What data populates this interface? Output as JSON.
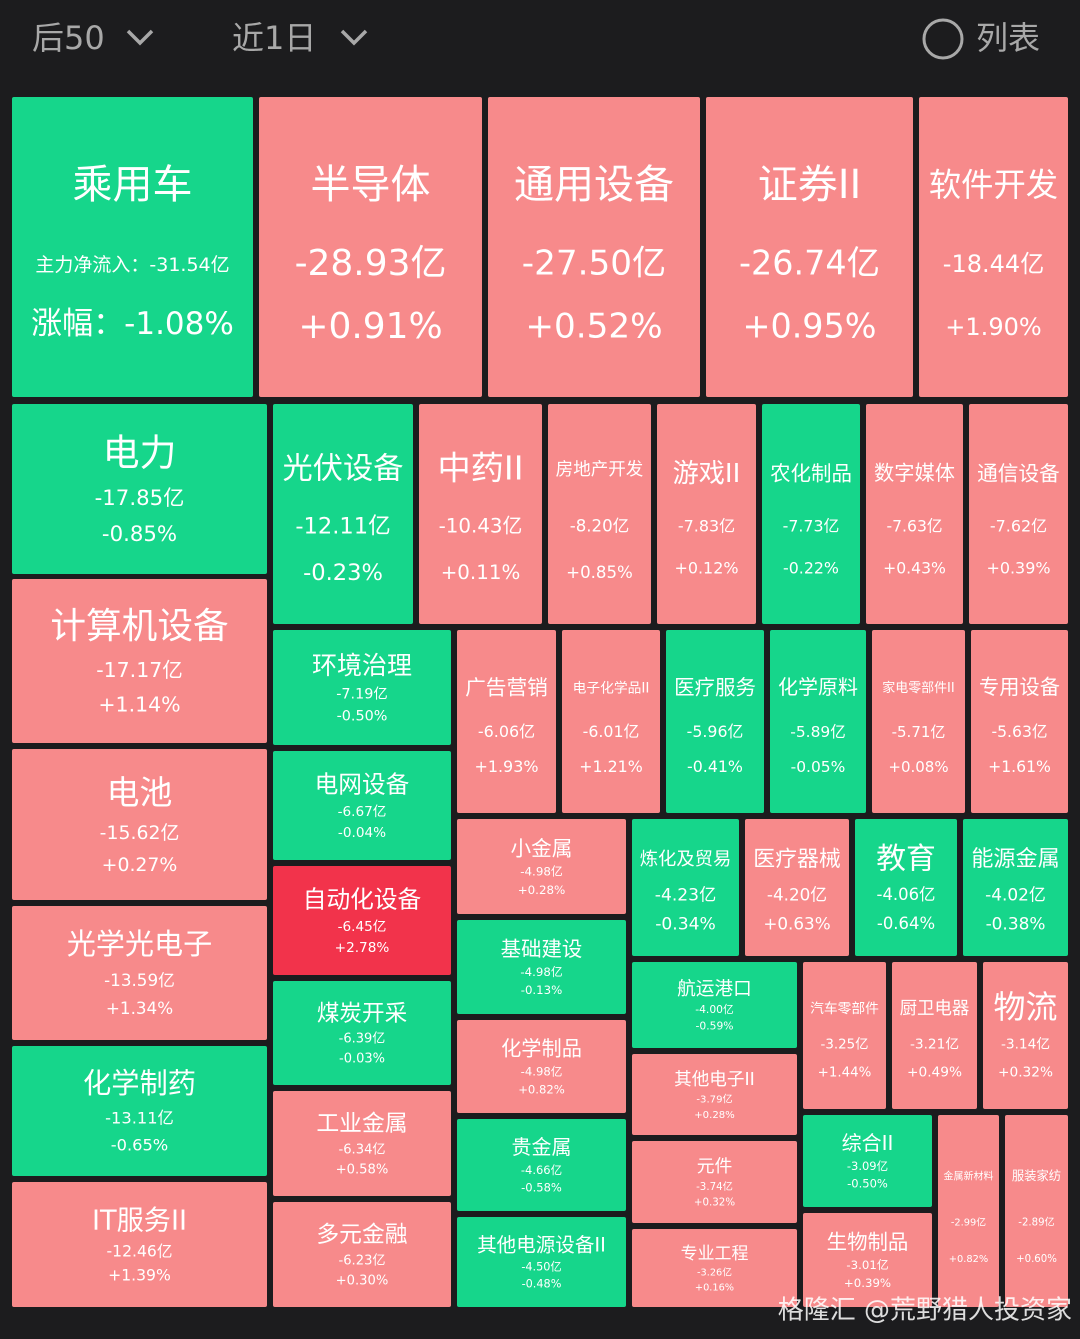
{
  "header": {
    "rank_filter": "后50",
    "period_filter": "近1日",
    "list_button": "列表"
  },
  "first_tile_labels": {
    "flow_label": "主力净流入：",
    "change_label": "涨幅："
  },
  "watermark": "格隆汇 @荒野猎人投资家",
  "tiles": [
    {
      "name": "乘用车",
      "flow": "-31.54亿",
      "change": "-1.08%",
      "color": "#16d68b"
    },
    {
      "name": "半导体",
      "flow": "-28.93亿",
      "change": "+0.91%",
      "color": "#f78a8b"
    },
    {
      "name": "通用设备",
      "flow": "-27.50亿",
      "change": "+0.52%",
      "color": "#f78a8b"
    },
    {
      "name": "证券II",
      "flow": "-26.74亿",
      "change": "+0.95%",
      "color": "#f78a8b"
    },
    {
      "name": "软件开发",
      "flow": "-18.44亿",
      "change": "+1.90%",
      "color": "#f78a8b"
    },
    {
      "name": "电力",
      "flow": "-17.85亿",
      "change": "-0.85%",
      "color": "#16d68b"
    },
    {
      "name": "计算机设备",
      "flow": "-17.17亿",
      "change": "+1.14%",
      "color": "#f78a8b"
    },
    {
      "name": "电池",
      "flow": "-15.62亿",
      "change": "+0.27%",
      "color": "#f78a8b"
    },
    {
      "name": "光学光电子",
      "flow": "-13.59亿",
      "change": "+1.34%",
      "color": "#f78a8b"
    },
    {
      "name": "化学制药",
      "flow": "-13.11亿",
      "change": "-0.65%",
      "color": "#16d68b"
    },
    {
      "name": "IT服务II",
      "flow": "-12.46亿",
      "change": "+1.39%",
      "color": "#f78a8b"
    },
    {
      "name": "光伏设备",
      "flow": "-12.11亿",
      "change": "-0.23%",
      "color": "#16d68b"
    },
    {
      "name": "中药II",
      "flow": "-10.43亿",
      "change": "+0.11%",
      "color": "#f78a8b"
    },
    {
      "name": "房地产开发",
      "flow": "-8.20亿",
      "change": "+0.85%",
      "color": "#f78a8b"
    },
    {
      "name": "游戏II",
      "flow": "-7.83亿",
      "change": "+0.12%",
      "color": "#f78a8b"
    },
    {
      "name": "农化制品",
      "flow": "-7.73亿",
      "change": "-0.22%",
      "color": "#16d68b"
    },
    {
      "name": "数字媒体",
      "flow": "-7.63亿",
      "change": "+0.43%",
      "color": "#f78a8b"
    },
    {
      "name": "通信设备",
      "flow": "-7.62亿",
      "change": "+0.39%",
      "color": "#f78a8b"
    },
    {
      "name": "环境治理",
      "flow": "-7.19亿",
      "change": "-0.50%",
      "color": "#16d68b"
    },
    {
      "name": "电网设备",
      "flow": "-6.67亿",
      "change": "-0.04%",
      "color": "#16d68b"
    },
    {
      "name": "自动化设备",
      "flow": "-6.45亿",
      "change": "+2.78%",
      "color": "#f2334b"
    },
    {
      "name": "煤炭开采",
      "flow": "-6.39亿",
      "change": "-0.03%",
      "color": "#16d68b"
    },
    {
      "name": "工业金属",
      "flow": "-6.34亿",
      "change": "+0.58%",
      "color": "#f78a8b"
    },
    {
      "name": "多元金融",
      "flow": "-6.23亿",
      "change": "+0.30%",
      "color": "#f78a8b"
    },
    {
      "name": "广告营销",
      "flow": "-6.06亿",
      "change": "+1.93%",
      "color": "#f78a8b"
    },
    {
      "name": "电子化学品II",
      "flow": "-6.01亿",
      "change": "+1.21%",
      "color": "#f78a8b"
    },
    {
      "name": "医疗服务",
      "flow": "-5.96亿",
      "change": "-0.41%",
      "color": "#16d68b"
    },
    {
      "name": "化学原料",
      "flow": "-5.89亿",
      "change": "-0.05%",
      "color": "#16d68b"
    },
    {
      "name": "家电零部件II",
      "flow": "-5.71亿",
      "change": "+0.08%",
      "color": "#f78a8b"
    },
    {
      "name": "专用设备",
      "flow": "-5.63亿",
      "change": "+1.61%",
      "color": "#f78a8b"
    },
    {
      "name": "小金属",
      "flow": "-4.98亿",
      "change": "+0.28%",
      "color": "#f78a8b"
    },
    {
      "name": "基础建设",
      "flow": "-4.98亿",
      "change": "-0.13%",
      "color": "#16d68b"
    },
    {
      "name": "化学制品",
      "flow": "-4.98亿",
      "change": "+0.82%",
      "color": "#f78a8b"
    },
    {
      "name": "贵金属",
      "flow": "-4.66亿",
      "change": "-0.58%",
      "color": "#16d68b"
    },
    {
      "name": "其他电源设备II",
      "flow": "-4.50亿",
      "change": "-0.48%",
      "color": "#16d68b"
    },
    {
      "name": "炼化及贸易",
      "flow": "-4.23亿",
      "change": "-0.34%",
      "color": "#16d68b"
    },
    {
      "name": "医疗器械",
      "flow": "-4.20亿",
      "change": "+0.63%",
      "color": "#f78a8b"
    },
    {
      "name": "教育",
      "flow": "-4.06亿",
      "change": "-0.64%",
      "color": "#16d68b"
    },
    {
      "name": "能源金属",
      "flow": "-4.02亿",
      "change": "-0.38%",
      "color": "#16d68b"
    },
    {
      "name": "航运港口",
      "flow": "-4.00亿",
      "change": "-0.59%",
      "color": "#16d68b"
    },
    {
      "name": "其他电子II",
      "flow": "-3.79亿",
      "change": "+0.28%",
      "color": "#f78a8b"
    },
    {
      "name": "元件",
      "flow": "-3.74亿",
      "change": "+0.32%",
      "color": "#f78a8b"
    },
    {
      "name": "专业工程",
      "flow": "-3.26亿",
      "change": "+0.16%",
      "color": "#f78a8b"
    },
    {
      "name": "汽车零部件",
      "flow": "-3.25亿",
      "change": "+1.44%",
      "color": "#f78a8b"
    },
    {
      "name": "厨卫电器",
      "flow": "-3.21亿",
      "change": "+0.49%",
      "color": "#f78a8b"
    },
    {
      "name": "物流",
      "flow": "-3.14亿",
      "change": "+0.32%",
      "color": "#f78a8b"
    },
    {
      "name": "综合II",
      "flow": "-3.09亿",
      "change": "-0.50%",
      "color": "#16d68b"
    },
    {
      "name": "生物制品",
      "flow": "-3.01亿",
      "change": "+0.39%",
      "color": "#f78a8b"
    },
    {
      "name": "金属新材料",
      "flow": "-2.99亿",
      "change": "+0.82%",
      "color": "#f78a8b"
    },
    {
      "name": "服装家纺",
      "flow": "-2.89亿",
      "change": "+0.60%",
      "color": "#f78a8b"
    }
  ]
}
